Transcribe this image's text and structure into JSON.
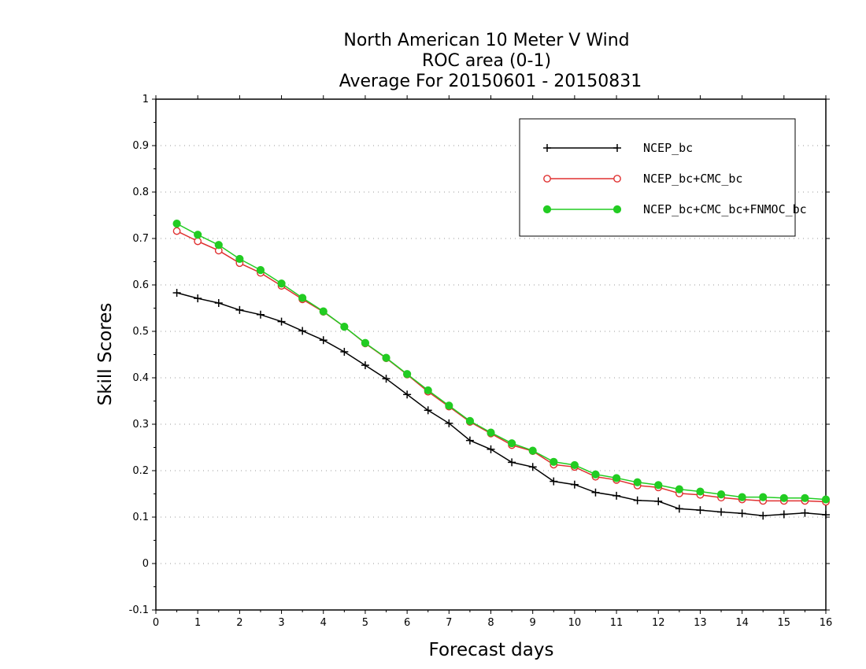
{
  "chart_data": {
    "type": "line",
    "title": [
      "North American 10 Meter V Wind",
      "ROC area (0-1)",
      "Average For 20150601 - 20150831"
    ],
    "xlabel": "Forecast days",
    "ylabel": "Skill Scores",
    "xlim": [
      0,
      16
    ],
    "ylim": [
      -0.1,
      1
    ],
    "xticks": [
      0,
      1,
      2,
      3,
      4,
      5,
      6,
      7,
      8,
      9,
      10,
      11,
      12,
      13,
      14,
      15,
      16
    ],
    "yticks": [
      -0.1,
      0,
      0.1,
      0.2,
      0.3,
      0.4,
      0.5,
      0.6,
      0.7,
      0.8,
      0.9,
      1
    ],
    "ytick_labels": [
      "-0.1",
      "0",
      "0.1",
      "0.2",
      "0.3",
      "0.4",
      "0.5",
      "0.6",
      "0.7",
      "0.8",
      "0.9",
      "1"
    ],
    "grid": "horizontal dotted",
    "legend_position": "top-right",
    "x": [
      0.5,
      1,
      1.5,
      2,
      2.5,
      3,
      3.5,
      4,
      4.5,
      5,
      5.5,
      6,
      6.5,
      7,
      7.5,
      8,
      8.5,
      9,
      9.5,
      10,
      10.5,
      11,
      11.5,
      12,
      12.5,
      13,
      13.5,
      14,
      14.5,
      15,
      15.5,
      16
    ],
    "series": [
      {
        "name": "NCEP_bc",
        "color": "#000000",
        "marker": "plus",
        "values": [
          0.583,
          0.571,
          0.561,
          0.546,
          0.536,
          0.521,
          0.501,
          0.481,
          0.456,
          0.427,
          0.398,
          0.364,
          0.33,
          0.302,
          0.265,
          0.246,
          0.218,
          0.208,
          0.177,
          0.17,
          0.153,
          0.146,
          0.136,
          0.134,
          0.118,
          0.115,
          0.111,
          0.108,
          0.103,
          0.106,
          0.109,
          0.105
        ]
      },
      {
        "name": "NCEP_bc+CMC_bc",
        "color": "#e03030",
        "marker": "open-circle",
        "values": [
          0.716,
          0.694,
          0.674,
          0.647,
          0.626,
          0.598,
          0.569,
          0.542,
          0.51,
          0.474,
          0.442,
          0.407,
          0.37,
          0.338,
          0.305,
          0.28,
          0.255,
          0.242,
          0.213,
          0.208,
          0.187,
          0.18,
          0.168,
          0.164,
          0.151,
          0.148,
          0.142,
          0.138,
          0.135,
          0.135,
          0.135,
          0.133
        ]
      },
      {
        "name": "NCEP_bc+CMC_bc+FNMOC_bc",
        "color": "#22cc22",
        "marker": "filled-circle",
        "values": [
          0.732,
          0.708,
          0.686,
          0.656,
          0.632,
          0.603,
          0.572,
          0.543,
          0.51,
          0.475,
          0.443,
          0.408,
          0.373,
          0.34,
          0.307,
          0.282,
          0.259,
          0.243,
          0.219,
          0.212,
          0.192,
          0.184,
          0.175,
          0.169,
          0.16,
          0.155,
          0.149,
          0.143,
          0.143,
          0.141,
          0.141,
          0.138
        ]
      }
    ]
  }
}
